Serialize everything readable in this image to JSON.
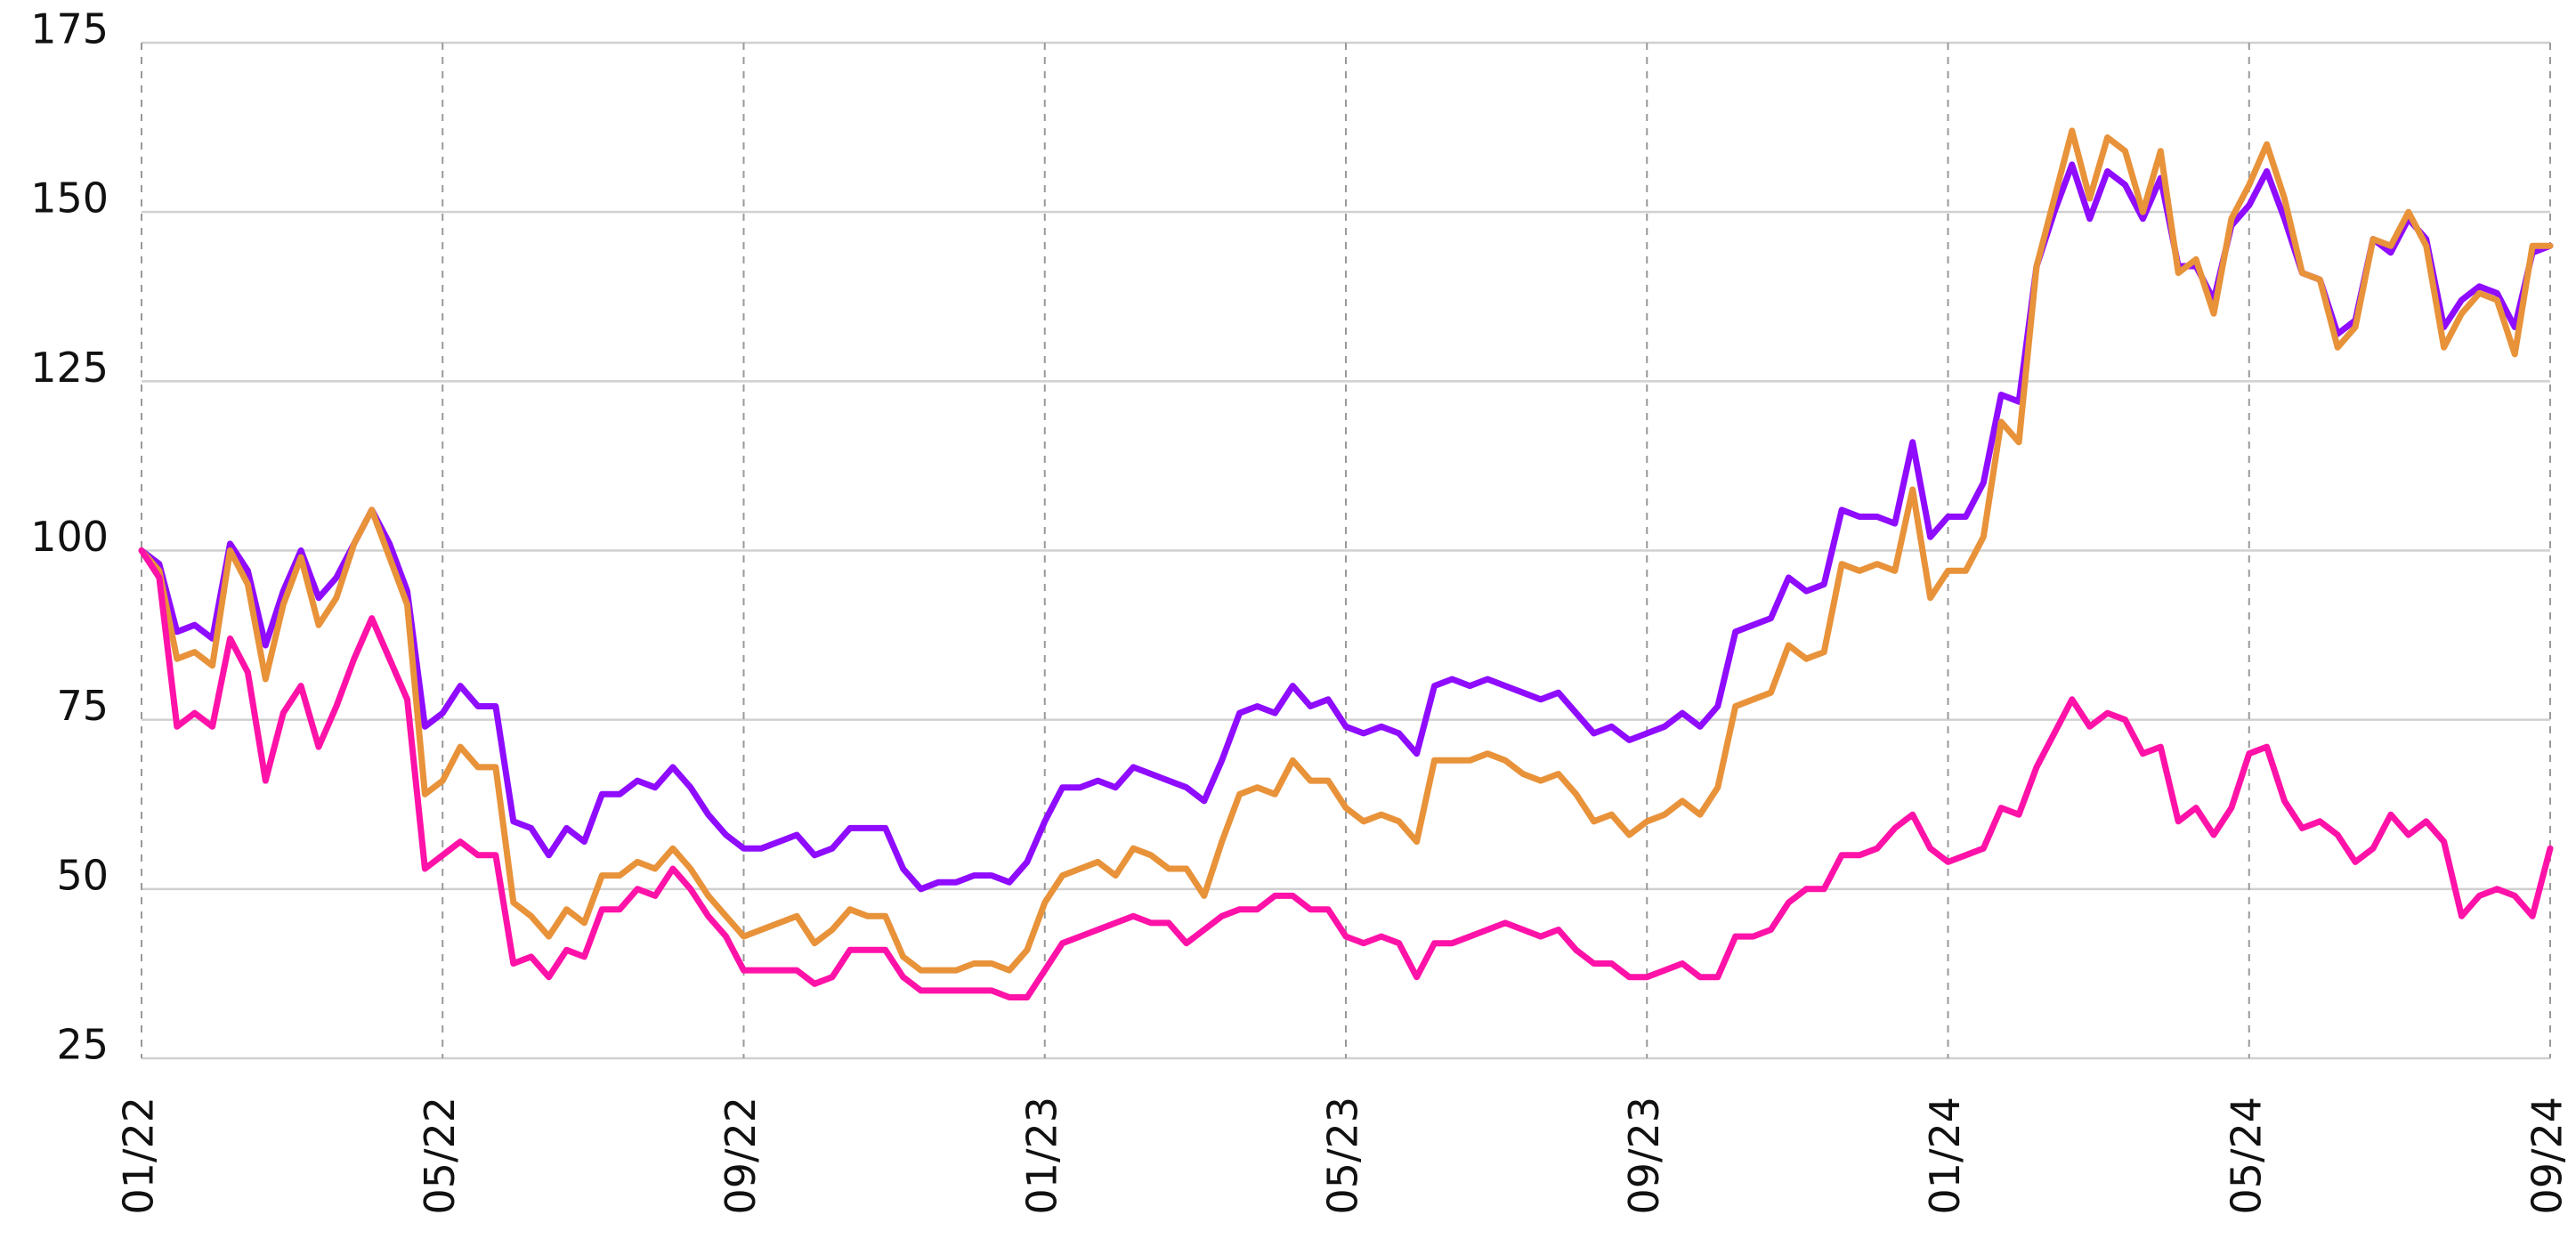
{
  "chart_data": {
    "type": "line",
    "categories": [
      "01/22",
      null,
      null,
      null,
      null,
      null,
      null,
      null,
      null,
      null,
      null,
      null,
      null,
      null,
      null,
      null,
      null,
      "05/22",
      null,
      null,
      null,
      null,
      null,
      null,
      null,
      null,
      null,
      null,
      null,
      null,
      null,
      null,
      null,
      null,
      "09/22",
      null,
      null,
      null,
      null,
      null,
      null,
      null,
      null,
      null,
      null,
      null,
      null,
      null,
      null,
      null,
      null,
      "01/23",
      null,
      null,
      null,
      null,
      null,
      null,
      null,
      null,
      null,
      null,
      null,
      null,
      null,
      null,
      null,
      null,
      "05/23",
      null,
      null,
      null,
      null,
      null,
      null,
      null,
      null,
      null,
      null,
      null,
      null,
      null,
      null,
      null,
      null,
      "09/23",
      null,
      null,
      null,
      null,
      null,
      null,
      null,
      null,
      null,
      null,
      null,
      null,
      null,
      null,
      null,
      null,
      "01/24",
      null,
      null,
      null,
      null,
      null,
      null,
      null,
      null,
      null,
      null,
      null,
      null,
      null,
      null,
      null,
      null,
      "05/24",
      null,
      null,
      null,
      null,
      null,
      null,
      null,
      null,
      null,
      null,
      null,
      null,
      null,
      null,
      null,
      null,
      "09/24"
    ],
    "series": [
      {
        "color": "#8f0cff",
        "values": [
          100,
          98,
          88,
          89,
          87,
          101,
          97,
          86,
          94,
          100,
          93,
          96,
          101,
          106,
          101,
          94,
          74,
          76,
          80,
          77,
          77,
          60,
          59,
          55,
          59,
          57,
          64,
          64,
          66,
          65,
          68,
          65,
          61,
          58,
          56,
          56,
          57,
          58,
          55,
          56,
          59,
          59,
          59,
          53,
          50,
          51,
          51,
          52,
          52,
          51,
          54,
          60,
          65,
          65,
          66,
          65,
          68,
          67,
          66,
          65,
          63,
          69,
          76,
          77,
          76,
          80,
          77,
          78,
          74,
          73,
          74,
          73,
          70,
          80,
          81,
          80,
          81,
          80,
          79,
          78,
          79,
          76,
          73,
          74,
          72,
          73,
          74,
          76,
          74,
          77,
          88,
          89,
          90,
          96,
          94,
          95,
          106,
          105,
          105,
          104,
          116,
          102,
          105,
          105,
          110,
          123,
          122,
          142,
          150,
          157,
          149,
          156,
          154,
          149,
          155,
          142,
          142,
          137,
          148,
          151,
          156,
          149,
          141,
          140,
          132,
          134,
          146,
          144,
          149,
          146,
          133,
          137,
          139,
          138,
          133,
          144,
          145
        ]
      },
      {
        "color": "#e8923a",
        "values": [
          100,
          97,
          84,
          85,
          83,
          100,
          95,
          81,
          92,
          99,
          89,
          93,
          101,
          106,
          99,
          92,
          64,
          66,
          71,
          68,
          68,
          48,
          46,
          43,
          47,
          45,
          52,
          52,
          54,
          53,
          56,
          53,
          49,
          46,
          43,
          44,
          45,
          46,
          42,
          44,
          47,
          46,
          46,
          40,
          38,
          38,
          38,
          39,
          39,
          38,
          41,
          48,
          52,
          53,
          54,
          52,
          56,
          55,
          53,
          53,
          49,
          57,
          64,
          65,
          64,
          69,
          66,
          66,
          62,
          60,
          61,
          60,
          57,
          69,
          69,
          69,
          70,
          69,
          67,
          66,
          67,
          64,
          60,
          61,
          58,
          60,
          61,
          63,
          61,
          65,
          77,
          78,
          79,
          86,
          84,
          85,
          98,
          97,
          98,
          97,
          109,
          93,
          97,
          97,
          102,
          119,
          116,
          142,
          152,
          162,
          152,
          161,
          159,
          150,
          159,
          141,
          143,
          135,
          149,
          154,
          160,
          152,
          141,
          140,
          130,
          133,
          146,
          145,
          150,
          145,
          130,
          135,
          138,
          137,
          129,
          145,
          145
        ]
      },
      {
        "color": "#ff12a8",
        "values": [
          100,
          96,
          74,
          76,
          74,
          87,
          82,
          66,
          76,
          80,
          71,
          77,
          84,
          90,
          84,
          78,
          53,
          55,
          57,
          55,
          55,
          39,
          40,
          37,
          41,
          40,
          47,
          47,
          50,
          49,
          53,
          50,
          46,
          43,
          38,
          38,
          38,
          38,
          36,
          37,
          41,
          41,
          41,
          37,
          35,
          35,
          35,
          35,
          35,
          34,
          34,
          38,
          42,
          43,
          44,
          45,
          46,
          45,
          45,
          42,
          44,
          46,
          47,
          47,
          49,
          49,
          47,
          47,
          43,
          42,
          43,
          42,
          37,
          42,
          42,
          43,
          44,
          45,
          44,
          43,
          44,
          41,
          39,
          39,
          37,
          37,
          38,
          39,
          37,
          37,
          43,
          43,
          44,
          48,
          50,
          50,
          55,
          55,
          56,
          59,
          61,
          56,
          54,
          55,
          56,
          62,
          61,
          68,
          73,
          78,
          74,
          76,
          75,
          70,
          71,
          60,
          62,
          58,
          62,
          70,
          71,
          63,
          59,
          60,
          58,
          54,
          56,
          61,
          58,
          60,
          57,
          46,
          49,
          50,
          49,
          46,
          56
        ]
      }
    ],
    "ylim": [
      25,
      175
    ],
    "yticks": [
      25,
      50,
      75,
      100,
      125,
      150,
      175
    ],
    "grid": true
  }
}
